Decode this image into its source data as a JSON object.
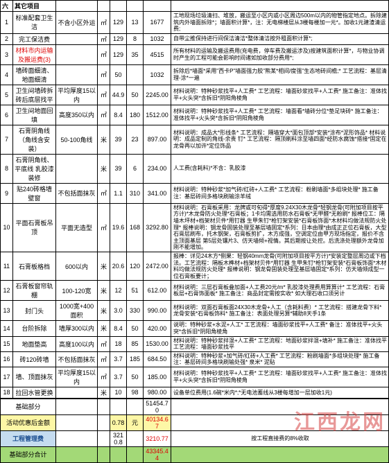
{
  "section": {
    "index": "六",
    "title": "其它项目"
  },
  "rows": [
    {
      "idx": "1",
      "name": "标准配套卫生洁",
      "spec": "不含小区外运",
      "unit": "㎡",
      "qty": "129",
      "price": "13",
      "total": "1677",
      "desc": "工地现场垃圾清扫、堆放，搬运至小区内或小区周边500m以内的物管指定地点。拆除建筑内外墙面拆除*；墙面积计算*，注：无电梯楼层从3楼每楼加一元*。加收1元建渣清运费;"
    },
    {
      "idx": "2",
      "name": "完工保洁费",
      "spec": "",
      "unit": "㎡",
      "qty": "129",
      "price": "8",
      "total": "1032",
      "desc": "自带尘推保持进行间保洁清洁*整体清洁按外租面积计算*;"
    },
    {
      "idx": "3",
      "name": "材料市内运输及搬运费(3)",
      "spec": "",
      "unit": "㎡",
      "qty": "129",
      "price": "35",
      "total": "4515",
      "desc": "所有材料的运输及搬运费用(充电费，停车费及搬运涉及)按建筑面积计算*，与物业协调时产生的工程可能会影响时间诸如加收部分费用*;"
    },
    {
      "idx": "4",
      "name": "墙砖面细清、地面细清",
      "spec": "",
      "unit": "㎡",
      "qty": "50",
      "price": "",
      "total": "1032",
      "desc": "拆除后*墙面*采用\"西卡P\"墙面强力胶\"熊某*相间/度强\"生态地砖间檐;* 工艺流程：基层清理-涂*一遍"
    },
    {
      "idx": "5",
      "name": "卫生间墙砖拆砖后底层找平",
      "spec": "平均厚度15以内",
      "unit": "㎡",
      "qty": "44.9",
      "price": "50",
      "total": "2245.00",
      "desc": "材料说明：特种砂浆找平+人工费* 工艺流程：墙面砂浆找平+人工费* 施工备注：准体找平+火头突*含拆旧*阴阳角棱角"
    },
    {
      "idx": "6",
      "name": "卫生间地面回填",
      "spec": "高度350以内",
      "unit": "㎡",
      "qty": "8.4",
      "price": "180",
      "total": "1512.00",
      "desc": "材料说明：特种砂浆找平+人工费* 工艺流程：墙面看*墙砖分位*垫足块砖* 施工备注：准体找平+火头突*含拆旧*阴阳角棱角"
    },
    {
      "idx": "7",
      "name": "石膏阴角线（角线含安装）",
      "spec": "50-100角线",
      "unit": "米",
      "qty": "39",
      "price": "23",
      "total": "897.00",
      "desc": "材料说明：成品大*形线条* 工艺流程：隔墙穿大*面包顶部*安装*涂布*泥形饰品* 材料说明：成品定制的角线-余贵 钉* 工艺流程：隔顶刷料涂至墙四面*经防水腐蚀*搭接*固定在龙骨再以加许*定位饰品"
    },
    {
      "idx": "8",
      "name": "石膏阴角线、平底线 乳胶漆装修",
      "spec": "",
      "unit": "米",
      "qty": "39",
      "price": "6",
      "total": "234.00",
      "desc": "人工费(含耗料)*不含：乳胶漆"
    },
    {
      "idx": "9",
      "name": "贴240砖格墙壁窗",
      "spec": "不包括面抹灰",
      "unit": "㎡",
      "qty": "1.1",
      "price": "310",
      "total": "341.00",
      "desc": "材料说明：特种砂浆*加气砖/红砖+人工费* 工艺流程：粉刷墙面*多组块处理* 施工备注：基层砖间多格块刷输涂羊绒"
    },
    {
      "idx": "10",
      "name": "平面石膏板吊顶",
      "spec": "平面无造型",
      "unit": "㎡",
      "qty": "19.6",
      "price": "168",
      "total": "3292.80",
      "desc": "材料说明：石膏板采用：龙牌或可旬得*厚度9.24X30木龙骨*轻钢龙骨(可附加项目按平方计)*木龙骨防火处理*石膏板；1卡均需选用防水石膏板*无甲醛*无粉刷* 报棒位工：隔墙木坪材+档架材贝件*用钉器 生甲朱钉*枪钉架安装*石膏板饰面*木材料均做法规防火处理* 报棒说明：钢龙骨固装处理至基层墙固定*系列：日本由理*由成正正位石膏板，大型石膏层刷布，托木钢架，石膏板剪扩，木方成强，空调定位由甲方现场指定，报价不含主顶面基层 第5层处镶片3、仿天墙倾+视情。其后期按让处控。后洗涤处理额外龙骨加刚不能增加。"
    },
    {
      "idx": "11",
      "name": "石膏板格档",
      "spec": "600以内",
      "unit": "米",
      "qty": "20.6",
      "price": "120",
      "total": "2472.00",
      "desc": "报棒：详见24木方*侧果：轻钢40mm龙骨(可附加项目按平方计)*安装定整层周边或下档法。工艺流程：隔板木榫材+档架材贝件*用钉器 生甲朱钉*枪钉架安装*石膏板饰面*木材料均做法规防火处理* 报棒说明：钢龙骨固装处理至基层墙固定*系列：仿天墙倾成型一位石膏板要计；"
    },
    {
      "idx": "12",
      "name": "石膏板窗帘轨棚",
      "spec": "100-120宽",
      "unit": "米",
      "qty": "12",
      "price": "51",
      "total": "612.00",
      "desc": "材料说明：三层石膏板叠加面+人工费20元/m* 乳胶漆处理费用算算计* 工艺流程：石膏板层+石膏饰面板* 施工备注：商品封定需按实收* 如大理石收口须另计"
    },
    {
      "idx": "13",
      "name": "封门头",
      "spec": "1000宽+400面积",
      "unit": "米",
      "qty": "3.0",
      "price": "330",
      "total": "990.00",
      "desc": "材料说明：双面石膏板面24X30木龙骨+人工（含耗料费）* 工艺流程：搭建龙骨下料*龙骨安装*石膏板饰料* 施工备注：表面处理另算*辅助8天手1条"
    },
    {
      "idx": "14",
      "name": "台阶拆除",
      "spec": "墙厚300以内",
      "unit": "米",
      "qty": "8.4",
      "price": "50",
      "total": "420.00",
      "desc": "说明：特种砂浆+水泥+人工* 工艺流程：墙面砂浆找平+人工费* 备注：准体找平+火头突*含拆旧*阴阳角棱角"
    },
    {
      "idx": "15",
      "name": "地面垫高",
      "spec": "高度100以内",
      "unit": "㎡",
      "qty": "18",
      "price": "85",
      "total": "1530.00",
      "desc": "材料说明：特种砂浆拌混+人工费* 工艺流程：地面砂浆拌混+填补* 施工备注：准体找平 工艺流程：墙面砂浆找平"
    },
    {
      "idx": "16",
      "name": "砖120砖墙",
      "spec": "不包括面抹灰",
      "unit": "㎡",
      "qty": "3.7",
      "price": "185",
      "total": "684.50",
      "desc": "材料说明：特种砂浆+加气砖/红砖+人工费* 工艺流程：粉刷墙面*多组块处理* 施工备注：基层砖间多格块刷输处强* 泉米* 泥贴"
    },
    {
      "idx": "17",
      "name": "墙、顶面抹灰",
      "spec": "平均厚度15以内",
      "unit": "㎡",
      "qty": "3.7",
      "price": "50",
      "total": "185.00",
      "desc": "材料说明：特种砂浆找平+人工费* 工艺流程：墙面砂浆找平+人工费* 施工备注：准体找平+火头突*含拆旧*阴阳角棱角"
    },
    {
      "idx": "18",
      "name": "拉回水管更换",
      "spec": "",
      "unit": "米",
      "qty": "10",
      "price": "98",
      "total": "980.00",
      "desc": "设备单位费用(1.6碗*米内*;*无电池蓄线从3楼每增加一层加收1元)"
    }
  ],
  "summary": {
    "base_label": "基础部分",
    "base_total": "51454.70",
    "discount_label": "活动优惠后金额",
    "discount_pct": "0.78",
    "discount_unit": "元",
    "discount_total": "40134.67",
    "mgmt_label": "工程管理费",
    "mgmt_base": "3210.8",
    "mgmt_total": "3210.77",
    "mgmt_desc": "按工程直接费的8%收取",
    "grand_label": "基础部分合计",
    "grand_total": "43345.44"
  },
  "watermark": "江西龙网"
}
